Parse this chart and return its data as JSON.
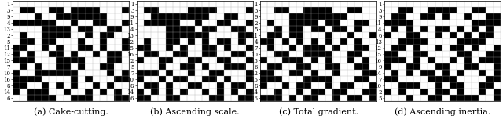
{
  "title_a": "(a) Cake-cutting.",
  "title_b": "(b) Ascending scale.",
  "title_c": "(c) Total gradient.",
  "title_d": "(d) Ascending inertia.",
  "yticks_a": [
    1,
    3,
    9,
    4,
    13,
    2,
    5,
    11,
    12,
    15,
    7,
    10,
    16,
    8,
    14,
    6
  ],
  "yticks_b": [
    1,
    3,
    9,
    11,
    4,
    13,
    12,
    15,
    16,
    2,
    5,
    7,
    10,
    8,
    14,
    6
  ],
  "yticks_c": [
    1,
    3,
    9,
    2,
    5,
    11,
    4,
    7,
    10,
    13,
    6,
    12,
    15,
    8,
    14,
    16
  ],
  "yticks_d": [
    1,
    3,
    9,
    11,
    4,
    6,
    13,
    12,
    15,
    16,
    9,
    14,
    7,
    10,
    2,
    5
  ],
  "matrix_a": [
    [
      0,
      0,
      0,
      0,
      0,
      0,
      0,
      0,
      0,
      0,
      0,
      0,
      0,
      0,
      0,
      0
    ],
    [
      0,
      1,
      1,
      0,
      0,
      1,
      1,
      0,
      1,
      1,
      1,
      1,
      0,
      0,
      0,
      1
    ],
    [
      0,
      0,
      0,
      1,
      0,
      0,
      1,
      1,
      1,
      1,
      1,
      1,
      1,
      0,
      0,
      0
    ],
    [
      1,
      1,
      1,
      1,
      1,
      1,
      0,
      0,
      1,
      0,
      0,
      1,
      1,
      0,
      0,
      1
    ],
    [
      0,
      0,
      0,
      0,
      1,
      1,
      1,
      1,
      0,
      1,
      1,
      0,
      0,
      1,
      1,
      0
    ],
    [
      0,
      1,
      0,
      0,
      1,
      1,
      1,
      1,
      0,
      0,
      1,
      0,
      1,
      1,
      0,
      0
    ],
    [
      0,
      1,
      1,
      0,
      1,
      1,
      0,
      0,
      0,
      1,
      0,
      0,
      1,
      0,
      0,
      1
    ],
    [
      1,
      1,
      0,
      0,
      1,
      0,
      1,
      0,
      0,
      1,
      1,
      0,
      1,
      0,
      0,
      1
    ],
    [
      1,
      0,
      1,
      0,
      0,
      1,
      1,
      0,
      1,
      0,
      0,
      1,
      0,
      1,
      1,
      0
    ],
    [
      1,
      1,
      1,
      0,
      0,
      0,
      1,
      1,
      1,
      1,
      0,
      0,
      0,
      1,
      1,
      0
    ],
    [
      0,
      1,
      0,
      1,
      0,
      0,
      1,
      1,
      0,
      1,
      0,
      0,
      1,
      1,
      0,
      0
    ],
    [
      1,
      0,
      0,
      1,
      1,
      1,
      1,
      1,
      1,
      0,
      0,
      0,
      0,
      1,
      0,
      1
    ],
    [
      1,
      1,
      1,
      1,
      0,
      0,
      0,
      0,
      1,
      0,
      1,
      0,
      0,
      0,
      1,
      1
    ],
    [
      1,
      1,
      0,
      0,
      1,
      0,
      1,
      0,
      1,
      0,
      0,
      1,
      0,
      1,
      0,
      0
    ],
    [
      1,
      0,
      1,
      1,
      1,
      0,
      0,
      1,
      0,
      0,
      1,
      0,
      1,
      0,
      1,
      0
    ],
    [
      0,
      0,
      1,
      1,
      1,
      1,
      0,
      0,
      1,
      1,
      1,
      0,
      0,
      0,
      1,
      1
    ]
  ],
  "matrix_b": [
    [
      0,
      0,
      0,
      0,
      0,
      0,
      0,
      0,
      0,
      0,
      0,
      0,
      0,
      0,
      0,
      0
    ],
    [
      0,
      1,
      1,
      0,
      0,
      0,
      0,
      1,
      1,
      1,
      1,
      0,
      0,
      0,
      0,
      1
    ],
    [
      0,
      0,
      1,
      1,
      1,
      1,
      1,
      1,
      1,
      1,
      0,
      0,
      1,
      1,
      0,
      0
    ],
    [
      0,
      1,
      1,
      1,
      1,
      1,
      0,
      0,
      1,
      0,
      0,
      1,
      1,
      0,
      0,
      1
    ],
    [
      0,
      0,
      0,
      0,
      1,
      1,
      1,
      1,
      0,
      1,
      1,
      0,
      0,
      1,
      1,
      0
    ],
    [
      0,
      0,
      0,
      0,
      1,
      1,
      1,
      1,
      1,
      1,
      0,
      0,
      0,
      0,
      1,
      1
    ],
    [
      0,
      1,
      0,
      0,
      1,
      1,
      0,
      1,
      0,
      1,
      0,
      1,
      1,
      0,
      1,
      0
    ],
    [
      1,
      1,
      0,
      0,
      1,
      0,
      1,
      0,
      0,
      1,
      1,
      0,
      1,
      0,
      0,
      1
    ],
    [
      0,
      1,
      1,
      0,
      0,
      1,
      1,
      0,
      0,
      1,
      1,
      0,
      0,
      1,
      1,
      0
    ],
    [
      1,
      0,
      0,
      1,
      1,
      0,
      0,
      1,
      1,
      0,
      0,
      1,
      1,
      0,
      0,
      1
    ],
    [
      0,
      0,
      0,
      1,
      0,
      0,
      1,
      1,
      0,
      1,
      0,
      0,
      1,
      1,
      1,
      0
    ],
    [
      1,
      1,
      1,
      0,
      1,
      0,
      0,
      1,
      0,
      0,
      1,
      1,
      0,
      0,
      0,
      1
    ],
    [
      1,
      0,
      0,
      1,
      0,
      1,
      1,
      0,
      0,
      1,
      1,
      0,
      1,
      0,
      0,
      1
    ],
    [
      0,
      1,
      1,
      0,
      1,
      0,
      0,
      1,
      1,
      0,
      0,
      1,
      0,
      1,
      1,
      0
    ],
    [
      1,
      0,
      1,
      0,
      1,
      0,
      1,
      0,
      0,
      1,
      0,
      1,
      0,
      1,
      0,
      1
    ],
    [
      1,
      1,
      0,
      0,
      1,
      1,
      0,
      0,
      0,
      0,
      1,
      1,
      0,
      0,
      1,
      1
    ]
  ],
  "matrix_c": [
    [
      0,
      0,
      0,
      0,
      0,
      0,
      0,
      0,
      0,
      0,
      0,
      0,
      0,
      0,
      0,
      0
    ],
    [
      0,
      0,
      1,
      1,
      0,
      0,
      1,
      1,
      1,
      1,
      0,
      0,
      1,
      1,
      0,
      0
    ],
    [
      0,
      0,
      0,
      0,
      1,
      1,
      1,
      1,
      1,
      1,
      1,
      1,
      0,
      0,
      0,
      0
    ],
    [
      0,
      1,
      0,
      0,
      1,
      1,
      1,
      1,
      0,
      1,
      1,
      0,
      0,
      1,
      1,
      0
    ],
    [
      0,
      0,
      1,
      0,
      1,
      1,
      0,
      1,
      1,
      0,
      1,
      1,
      0,
      1,
      0,
      0
    ],
    [
      0,
      1,
      1,
      0,
      1,
      1,
      0,
      0,
      0,
      1,
      0,
      0,
      1,
      0,
      0,
      1
    ],
    [
      1,
      1,
      0,
      1,
      0,
      1,
      0,
      1,
      0,
      1,
      0,
      1,
      0,
      1,
      0,
      0
    ],
    [
      0,
      1,
      0,
      0,
      1,
      0,
      1,
      1,
      1,
      0,
      1,
      0,
      0,
      1,
      1,
      0
    ],
    [
      0,
      0,
      1,
      1,
      0,
      0,
      1,
      1,
      1,
      1,
      0,
      0,
      1,
      1,
      0,
      0
    ],
    [
      1,
      0,
      0,
      1,
      1,
      1,
      0,
      1,
      0,
      1,
      0,
      0,
      1,
      0,
      1,
      0
    ],
    [
      0,
      1,
      1,
      0,
      0,
      1,
      1,
      0,
      0,
      1,
      1,
      0,
      0,
      1,
      1,
      0
    ],
    [
      1,
      1,
      0,
      0,
      1,
      1,
      0,
      1,
      0,
      0,
      1,
      0,
      0,
      0,
      1,
      1
    ],
    [
      1,
      1,
      1,
      0,
      0,
      0,
      1,
      1,
      1,
      1,
      0,
      0,
      0,
      1,
      1,
      0
    ],
    [
      1,
      0,
      0,
      1,
      0,
      1,
      1,
      0,
      0,
      1,
      0,
      1,
      1,
      0,
      0,
      1
    ],
    [
      0,
      0,
      1,
      0,
      0,
      1,
      0,
      1,
      1,
      0,
      1,
      1,
      0,
      0,
      1,
      1
    ],
    [
      1,
      1,
      1,
      0,
      1,
      0,
      1,
      1,
      0,
      0,
      1,
      0,
      1,
      1,
      0,
      1
    ]
  ],
  "matrix_d": [
    [
      0,
      0,
      0,
      0,
      0,
      0,
      0,
      0,
      0,
      0,
      0,
      0,
      0,
      0,
      0,
      0
    ],
    [
      0,
      0,
      1,
      1,
      0,
      0,
      1,
      1,
      1,
      1,
      0,
      0,
      1,
      1,
      0,
      0
    ],
    [
      0,
      1,
      1,
      0,
      0,
      1,
      1,
      0,
      1,
      0,
      0,
      1,
      0,
      0,
      1,
      1
    ],
    [
      1,
      1,
      1,
      1,
      0,
      0,
      0,
      0,
      0,
      0,
      0,
      0,
      1,
      1,
      1,
      1
    ],
    [
      0,
      1,
      0,
      1,
      0,
      1,
      0,
      1,
      1,
      0,
      1,
      0,
      1,
      0,
      1,
      0
    ],
    [
      1,
      0,
      0,
      1,
      1,
      0,
      0,
      1,
      0,
      1,
      0,
      1,
      0,
      1,
      1,
      0
    ],
    [
      0,
      0,
      1,
      1,
      1,
      1,
      0,
      0,
      0,
      0,
      1,
      1,
      1,
      1,
      0,
      0
    ],
    [
      0,
      1,
      1,
      0,
      1,
      0,
      0,
      1,
      0,
      1,
      1,
      0,
      1,
      0,
      0,
      1
    ],
    [
      1,
      1,
      0,
      0,
      1,
      1,
      0,
      0,
      0,
      0,
      1,
      1,
      0,
      0,
      1,
      1
    ],
    [
      1,
      1,
      1,
      0,
      1,
      0,
      1,
      0,
      0,
      1,
      0,
      1,
      0,
      1,
      1,
      1
    ],
    [
      1,
      0,
      0,
      1,
      1,
      0,
      0,
      1,
      1,
      0,
      0,
      1,
      1,
      0,
      0,
      1
    ],
    [
      0,
      1,
      0,
      1,
      0,
      1,
      1,
      0,
      1,
      0,
      1,
      0,
      0,
      1,
      0,
      1
    ],
    [
      1,
      1,
      0,
      0,
      0,
      0,
      1,
      1,
      1,
      1,
      0,
      0,
      0,
      0,
      1,
      1
    ],
    [
      0,
      0,
      1,
      1,
      1,
      0,
      0,
      1,
      0,
      1,
      1,
      0,
      0,
      1,
      1,
      0
    ],
    [
      1,
      0,
      1,
      0,
      0,
      1,
      0,
      1,
      1,
      0,
      1,
      0,
      0,
      1,
      0,
      1
    ],
    [
      0,
      0,
      0,
      1,
      0,
      0,
      1,
      1,
      0,
      1,
      1,
      1,
      1,
      0,
      0,
      1
    ]
  ],
  "caption_fontsize": 8,
  "tick_fontsize": 5.0,
  "fig_width": 6.4,
  "fig_height": 1.48
}
